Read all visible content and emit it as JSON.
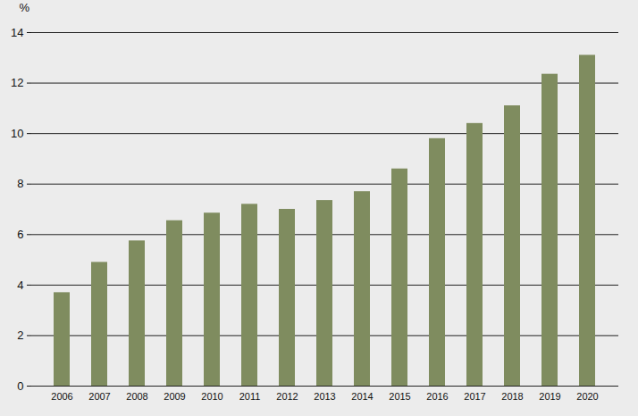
{
  "chart_data": {
    "type": "bar",
    "y_label": "%",
    "categories": [
      "2006",
      "2007",
      "2008",
      "2009",
      "2010",
      "2011",
      "2012",
      "2013",
      "2014",
      "2015",
      "2016",
      "2017",
      "2018",
      "2019",
      "2020"
    ],
    "values": [
      3.7,
      4.9,
      5.75,
      6.55,
      6.85,
      7.2,
      7.0,
      7.35,
      7.7,
      8.6,
      9.8,
      10.4,
      11.1,
      12.35,
      13.1
    ],
    "color": "#7f8c5f",
    "ylim": [
      0,
      14
    ],
    "yticks": [
      0,
      2,
      4,
      6,
      8,
      10,
      12,
      14
    ],
    "grid": true
  }
}
